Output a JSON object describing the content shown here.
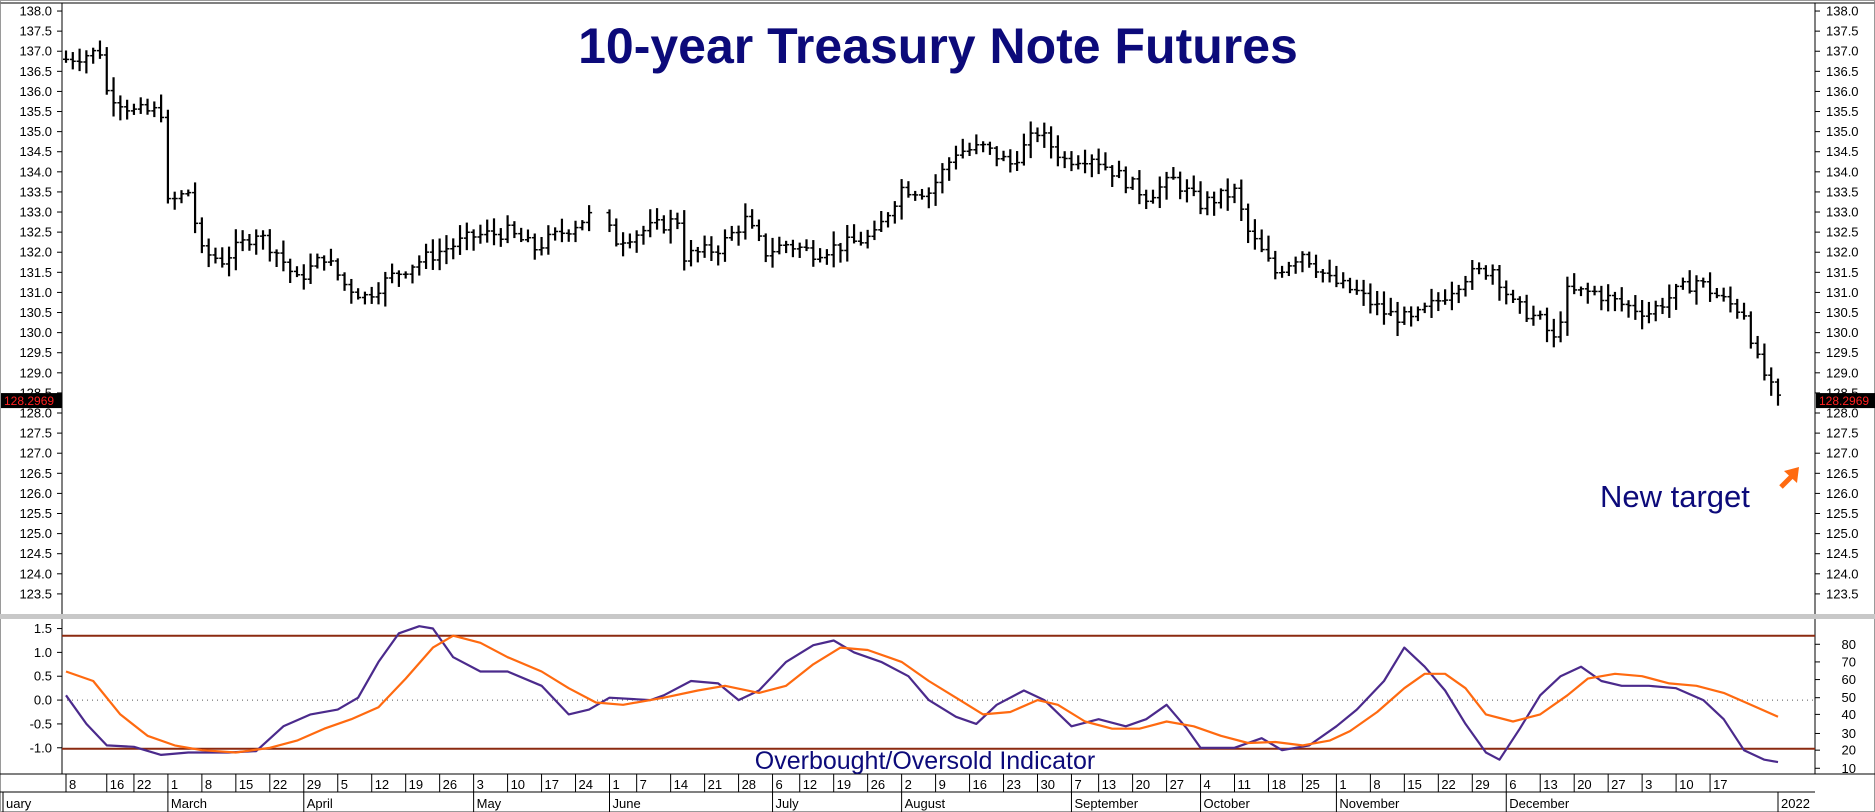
{
  "chart_data": [
    {
      "type": "bar",
      "subtype": "ohlc",
      "title": "10-year Treasury Note Futures",
      "ylabel": "",
      "xlabel": "",
      "ylim": [
        123.0,
        138.2
      ],
      "y_ticks": [
        123.5,
        124.0,
        124.5,
        125.0,
        125.5,
        126.0,
        126.5,
        127.0,
        127.5,
        128.0,
        128.5,
        129.0,
        129.5,
        130.0,
        130.5,
        131.0,
        131.5,
        132.0,
        132.5,
        133.0,
        133.5,
        134.0,
        134.5,
        135.0,
        135.5,
        136.0,
        136.5,
        137.0,
        137.5,
        138.0
      ],
      "y_tick_labels": [
        "123.5",
        "124.0",
        "124.5",
        "125.0",
        "125.5",
        "126.0",
        "126.5",
        "127.0",
        "127.5",
        "128.0",
        "128.5",
        "129.0",
        "129.5",
        "130.0",
        "130.5",
        "131.0",
        "131.5",
        "132.0",
        "132.5",
        "133.0",
        "133.5",
        "134.0",
        "134.5",
        "135.0",
        "135.5",
        "136.0",
        "136.5",
        "137.0",
        "137.5",
        "138.0"
      ],
      "last_value_label": "128.2969",
      "last_value": 128.2969,
      "grid": false,
      "price_path": [
        [
          0,
          136.8
        ],
        [
          5,
          137.0
        ],
        [
          6,
          136.0
        ],
        [
          10,
          135.5
        ],
        [
          14,
          135.5
        ],
        [
          15,
          133.2
        ],
        [
          18,
          133.5
        ],
        [
          20,
          132.0
        ],
        [
          23,
          131.8
        ],
        [
          28,
          132.5
        ],
        [
          31,
          132.0
        ],
        [
          34,
          131.3
        ],
        [
          38,
          131.9
        ],
        [
          41,
          131.2
        ],
        [
          44,
          130.9
        ],
        [
          48,
          131.4
        ],
        [
          51,
          131.7
        ],
        [
          56,
          132.1
        ],
        [
          60,
          132.4
        ],
        [
          65,
          132.5
        ],
        [
          69,
          132.1
        ],
        [
          74,
          132.6
        ],
        [
          78,
          133.0
        ],
        [
          81,
          132.3
        ],
        [
          86,
          132.6
        ],
        [
          90,
          132.8
        ],
        [
          91,
          131.9
        ],
        [
          96,
          132.1
        ],
        [
          100,
          132.8
        ],
        [
          103,
          132.0
        ],
        [
          106,
          132.2
        ],
        [
          110,
          132.0
        ],
        [
          115,
          132.2
        ],
        [
          119,
          132.4
        ],
        [
          123,
          133.6
        ],
        [
          127,
          133.5
        ],
        [
          131,
          134.5
        ],
        [
          135,
          134.6
        ],
        [
          139,
          134.2
        ],
        [
          143,
          135.0
        ],
        [
          147,
          134.3
        ],
        [
          151,
          134.4
        ],
        [
          155,
          133.9
        ],
        [
          159,
          133.4
        ],
        [
          163,
          133.8
        ],
        [
          167,
          133.2
        ],
        [
          172,
          133.5
        ],
        [
          174,
          132.5
        ],
        [
          178,
          131.5
        ],
        [
          182,
          132.0
        ],
        [
          186,
          131.3
        ],
        [
          190,
          131.0
        ],
        [
          194,
          130.5
        ],
        [
          198,
          130.3
        ],
        [
          202,
          130.8
        ],
        [
          206,
          131.4
        ],
        [
          210,
          131.6
        ],
        [
          213,
          130.7
        ],
        [
          217,
          130.3
        ],
        [
          219,
          129.8
        ],
        [
          221,
          131.0
        ],
        [
          225,
          131.0
        ],
        [
          229,
          130.7
        ],
        [
          233,
          130.5
        ],
        [
          237,
          131.0
        ],
        [
          240,
          131.3
        ],
        [
          244,
          130.8
        ],
        [
          247,
          130.5
        ],
        [
          249,
          129.3
        ],
        [
          251,
          128.6
        ],
        [
          252,
          128.3
        ]
      ],
      "annotation": "New target",
      "x_tick_labels": [
        "8",
        "16",
        "22",
        "1",
        "8",
        "15",
        "22",
        "29",
        "5",
        "12",
        "19",
        "26",
        "3",
        "10",
        "17",
        "24",
        "1",
        "7",
        "14",
        "21",
        "28",
        "6",
        "12",
        "19",
        "26",
        "2",
        "9",
        "16",
        "23",
        "30",
        "7",
        "13",
        "20",
        "27",
        "4",
        "11",
        "18",
        "25",
        "1",
        "8",
        "15",
        "22",
        "29",
        "6",
        "13",
        "20",
        "27",
        "3",
        "10",
        "17"
      ],
      "x_tick_days": [
        0,
        6,
        10,
        15,
        20,
        25,
        30,
        35,
        40,
        45,
        50,
        55,
        60,
        65,
        70,
        75,
        80,
        84,
        89,
        94,
        99,
        104,
        108,
        113,
        118,
        123,
        128,
        133,
        138,
        143,
        148,
        152,
        157,
        162,
        167,
        172,
        177,
        182,
        187,
        192,
        197,
        202,
        207,
        212,
        217,
        222,
        227,
        232,
        237,
        242
      ],
      "x_month_labels": [
        "uary",
        "March",
        "April",
        "May",
        "June",
        "July",
        "August",
        "September",
        "October",
        "November",
        "December",
        "2022"
      ],
      "x_month_days": [
        0,
        15,
        35,
        60,
        80,
        104,
        123,
        148,
        167,
        187,
        212,
        252
      ]
    },
    {
      "type": "line",
      "title": "Overbought/Oversold Indicator",
      "ylim": [
        -1.55,
        1.7
      ],
      "y_ticks": [
        -1.0,
        -0.5,
        0.0,
        0.5,
        1.0,
        1.5
      ],
      "y_tick_labels": [
        "-1.0",
        "-0.5",
        "0.0",
        "0.5",
        "1.0",
        "1.5"
      ],
      "y2_tick_labels": [
        "10",
        "20",
        "30",
        "40",
        "50",
        "60",
        "70",
        "80"
      ],
      "y2_ticks": [
        -1.43,
        -1.05,
        -0.7,
        -0.3,
        0.05,
        0.43,
        0.8,
        1.17
      ],
      "upper_band": 1.35,
      "lower_band": -1.02,
      "zero_line": 0.0,
      "series": [
        {
          "color": "#4B2A8C",
          "points": [
            [
              0,
              0.1
            ],
            [
              3,
              -0.5
            ],
            [
              6,
              -0.95
            ],
            [
              10,
              -0.98
            ],
            [
              14,
              -1.15
            ],
            [
              18,
              -1.1
            ],
            [
              24,
              -1.1
            ],
            [
              28,
              -1.07
            ],
            [
              32,
              -0.55
            ],
            [
              36,
              -0.3
            ],
            [
              40,
              -0.2
            ],
            [
              43,
              0.05
            ],
            [
              46,
              0.8
            ],
            [
              49,
              1.4
            ],
            [
              52,
              1.55
            ],
            [
              54,
              1.5
            ],
            [
              57,
              0.9
            ],
            [
              61,
              0.6
            ],
            [
              65,
              0.6
            ],
            [
              70,
              0.3
            ],
            [
              74,
              -0.3
            ],
            [
              77,
              -0.2
            ],
            [
              80,
              0.05
            ],
            [
              86,
              0.0
            ],
            [
              88,
              0.1
            ],
            [
              92,
              0.4
            ],
            [
              96,
              0.35
            ],
            [
              99,
              0.0
            ],
            [
              102,
              0.2
            ],
            [
              106,
              0.8
            ],
            [
              110,
              1.15
            ],
            [
              113,
              1.25
            ],
            [
              116,
              1.0
            ],
            [
              120,
              0.8
            ],
            [
              124,
              0.5
            ],
            [
              127,
              0.0
            ],
            [
              131,
              -0.35
            ],
            [
              134,
              -0.5
            ],
            [
              137,
              -0.1
            ],
            [
              141,
              0.2
            ],
            [
              144,
              0.0
            ],
            [
              148,
              -0.55
            ],
            [
              152,
              -0.4
            ],
            [
              156,
              -0.55
            ],
            [
              159,
              -0.4
            ],
            [
              162,
              -0.1
            ],
            [
              165,
              -0.6
            ],
            [
              167,
              -1.0
            ],
            [
              172,
              -1.0
            ],
            [
              176,
              -0.8
            ],
            [
              179,
              -1.05
            ],
            [
              183,
              -0.95
            ],
            [
              187,
              -0.55
            ],
            [
              190,
              -0.2
            ],
            [
              194,
              0.4
            ],
            [
              197,
              1.1
            ],
            [
              200,
              0.7
            ],
            [
              203,
              0.2
            ],
            [
              206,
              -0.5
            ],
            [
              209,
              -1.1
            ],
            [
              211,
              -1.25
            ],
            [
              214,
              -0.6
            ],
            [
              217,
              0.1
            ],
            [
              220,
              0.5
            ],
            [
              223,
              0.7
            ],
            [
              226,
              0.4
            ],
            [
              229,
              0.3
            ],
            [
              233,
              0.3
            ],
            [
              237,
              0.25
            ],
            [
              241,
              0.0
            ],
            [
              244,
              -0.4
            ],
            [
              247,
              -1.05
            ],
            [
              250,
              -1.25
            ],
            [
              252,
              -1.3
            ]
          ]
        },
        {
          "color": "#FF6A10",
          "points": [
            [
              0,
              0.6
            ],
            [
              4,
              0.4
            ],
            [
              8,
              -0.3
            ],
            [
              12,
              -0.75
            ],
            [
              16,
              -0.95
            ],
            [
              20,
              -1.05
            ],
            [
              25,
              -1.1
            ],
            [
              30,
              -1.0
            ],
            [
              34,
              -0.85
            ],
            [
              38,
              -0.6
            ],
            [
              42,
              -0.4
            ],
            [
              46,
              -0.15
            ],
            [
              50,
              0.45
            ],
            [
              54,
              1.1
            ],
            [
              57,
              1.35
            ],
            [
              61,
              1.2
            ],
            [
              65,
              0.9
            ],
            [
              70,
              0.6
            ],
            [
              74,
              0.25
            ],
            [
              78,
              -0.05
            ],
            [
              82,
              -0.1
            ],
            [
              88,
              0.05
            ],
            [
              93,
              0.2
            ],
            [
              97,
              0.3
            ],
            [
              102,
              0.15
            ],
            [
              106,
              0.3
            ],
            [
              110,
              0.75
            ],
            [
              114,
              1.1
            ],
            [
              118,
              1.05
            ],
            [
              123,
              0.8
            ],
            [
              127,
              0.4
            ],
            [
              131,
              0.05
            ],
            [
              135,
              -0.3
            ],
            [
              139,
              -0.25
            ],
            [
              143,
              0.0
            ],
            [
              146,
              -0.1
            ],
            [
              150,
              -0.45
            ],
            [
              154,
              -0.6
            ],
            [
              158,
              -0.6
            ],
            [
              162,
              -0.45
            ],
            [
              166,
              -0.55
            ],
            [
              170,
              -0.75
            ],
            [
              174,
              -0.9
            ],
            [
              178,
              -0.88
            ],
            [
              182,
              -0.95
            ],
            [
              186,
              -0.85
            ],
            [
              189,
              -0.65
            ],
            [
              193,
              -0.25
            ],
            [
              197,
              0.25
            ],
            [
              200,
              0.55
            ],
            [
              203,
              0.55
            ],
            [
              206,
              0.25
            ],
            [
              209,
              -0.3
            ],
            [
              213,
              -0.45
            ],
            [
              217,
              -0.3
            ],
            [
              221,
              0.1
            ],
            [
              224,
              0.45
            ],
            [
              228,
              0.55
            ],
            [
              232,
              0.5
            ],
            [
              236,
              0.35
            ],
            [
              240,
              0.3
            ],
            [
              244,
              0.15
            ],
            [
              248,
              -0.1
            ],
            [
              252,
              -0.35
            ]
          ]
        }
      ]
    }
  ]
}
